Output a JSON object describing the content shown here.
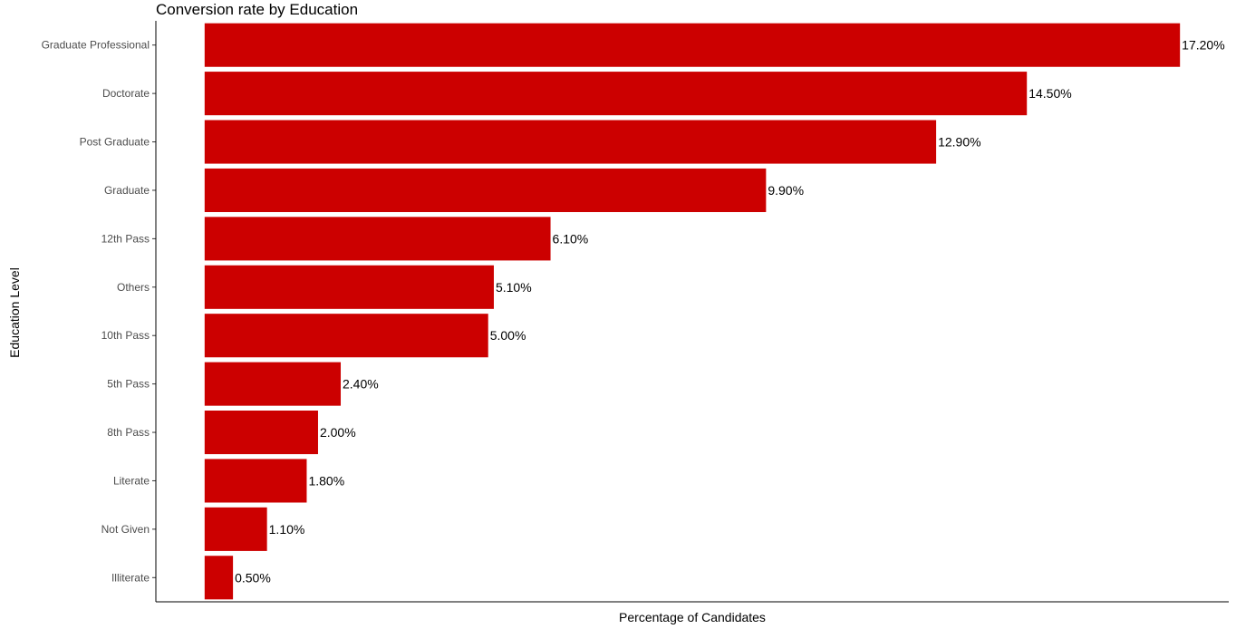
{
  "colors": {
    "bar": "#cc0000",
    "background": "#ffffff",
    "axis": "#000000",
    "tick_text": "#4d4d4d"
  },
  "chart_data": {
    "type": "bar",
    "orientation": "horizontal",
    "title": "Conversion rate by Education",
    "xlabel": "Percentage of Candidates",
    "ylabel": "Education Level",
    "categories": [
      "Graduate Professional",
      "Doctorate",
      "Post Graduate",
      "Graduate",
      "12th Pass",
      "Others",
      "10th Pass",
      "5th Pass",
      "8th Pass",
      "Literate",
      "Not Given",
      "Illiterate"
    ],
    "values": [
      17.2,
      14.5,
      12.9,
      9.9,
      6.1,
      5.1,
      5.0,
      2.4,
      2.0,
      1.8,
      1.1,
      0.5
    ],
    "data_labels": [
      "17.20%",
      "14.50%",
      "12.90%",
      "9.90%",
      "6.10%",
      "5.10%",
      "5.00%",
      "2.40%",
      "2.00%",
      "1.80%",
      "1.10%",
      "0.50%"
    ],
    "xlim": [
      -0.86,
      18.06
    ],
    "x_tick_labels_visible": false,
    "grid": false,
    "legend": "none"
  }
}
